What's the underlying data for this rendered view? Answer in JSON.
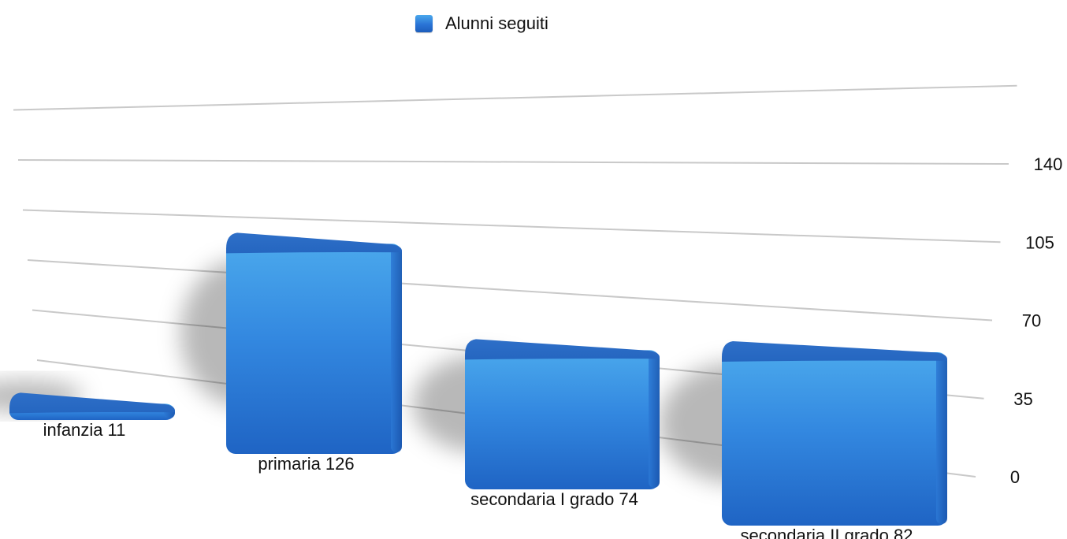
{
  "chart_data": {
    "type": "bar",
    "categories": [
      "infanzia 11",
      "primaria 126",
      "secondaria I grado 74",
      "secondaria II grado 82"
    ],
    "series": [
      {
        "name": "Alunni seguiti",
        "values": [
          11,
          126,
          74,
          82
        ]
      }
    ],
    "yticks": [
      0,
      35,
      70,
      105,
      140
    ],
    "ylim": [
      0,
      140
    ],
    "legend_position": "top",
    "grid": true,
    "bar_color": "#2f7fdc",
    "bar_color_light": "#4aa8ec",
    "bar_color_dark": "#1c5dbb"
  }
}
